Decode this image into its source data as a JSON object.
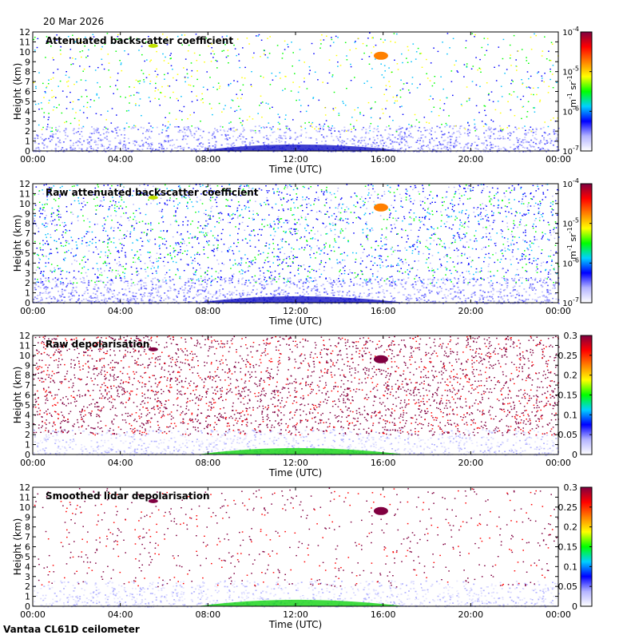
{
  "date_label": "20 Mar 2026",
  "footer_label": "Vantaa CL61D ceilometer",
  "time_ticks": [
    "00:00",
    "04:00",
    "08:00",
    "12:00",
    "16:00",
    "20:00",
    "00:00"
  ],
  "height_ticks": [
    "0",
    "1",
    "2",
    "3",
    "4",
    "5",
    "6",
    "7",
    "8",
    "9",
    "10",
    "11",
    "12"
  ],
  "chart_data": [
    {
      "type": "heatmap",
      "title": "Attenuated backscatter coefficient",
      "xlabel": "Time (UTC)",
      "ylabel": "Height (km)",
      "xlim": [
        0,
        24
      ],
      "ylim": [
        0,
        12
      ],
      "colorbar": {
        "scale": "log",
        "range": [
          1e-07,
          0.0001
        ],
        "unit_base": "m",
        "unit_exp": "-1",
        "unit_base2": " sr",
        "unit_exp2": "-1",
        "ticks": [
          {
            "value": 1e-07,
            "base": "10",
            "exp": "-7"
          },
          {
            "value": 1e-06,
            "base": "10",
            "exp": "-6"
          },
          {
            "value": 1e-05,
            "base": "10",
            "exp": "-5"
          },
          {
            "value": 0.0001,
            "base": "10",
            "exp": "-4"
          }
        ]
      },
      "colormap": [
        "#ffffff",
        "#b3b3ff",
        "#0000ff",
        "#00d0ff",
        "#00ff00",
        "#ffff00",
        "#ff8000",
        "#ff0000",
        "#800040"
      ]
    },
    {
      "type": "heatmap",
      "title": "Raw attenuated backscatter coefficient",
      "xlabel": "Time (UTC)",
      "ylabel": "Height (km)",
      "xlim": [
        0,
        24
      ],
      "ylim": [
        0,
        12
      ],
      "colorbar": {
        "scale": "log",
        "range": [
          1e-07,
          0.0001
        ],
        "unit_base": "m",
        "unit_exp": "-1",
        "unit_base2": " sr",
        "unit_exp2": "-1",
        "ticks": [
          {
            "value": 1e-07,
            "base": "10",
            "exp": "-7"
          },
          {
            "value": 1e-06,
            "base": "10",
            "exp": "-6"
          },
          {
            "value": 1e-05,
            "base": "10",
            "exp": "-5"
          },
          {
            "value": 0.0001,
            "base": "10",
            "exp": "-4"
          }
        ]
      },
      "colormap": [
        "#ffffff",
        "#b3b3ff",
        "#0000ff",
        "#00d0ff",
        "#00ff00",
        "#ffff00",
        "#ff8000",
        "#ff0000",
        "#800040"
      ]
    },
    {
      "type": "heatmap",
      "title": "Raw depolarisation",
      "xlabel": "Time (UTC)",
      "ylabel": "Height (km)",
      "xlim": [
        0,
        24
      ],
      "ylim": [
        0,
        12
      ],
      "colorbar": {
        "scale": "linear",
        "range": [
          0,
          0.3
        ],
        "ticks": [
          {
            "value": 0,
            "label": "0"
          },
          {
            "value": 0.05,
            "label": "0.05"
          },
          {
            "value": 0.1,
            "label": "0.1"
          },
          {
            "value": 0.15,
            "label": "0.15"
          },
          {
            "value": 0.2,
            "label": "0.2"
          },
          {
            "value": 0.25,
            "label": "0.25"
          },
          {
            "value": 0.3,
            "label": "0.3"
          }
        ]
      },
      "colormap": [
        "#ffffff",
        "#b3b3ff",
        "#0000ff",
        "#00d0ff",
        "#00ff00",
        "#ffff00",
        "#ff8000",
        "#ff0000",
        "#800040"
      ]
    },
    {
      "type": "heatmap",
      "title": "Smoothed lidar depolarisation",
      "xlabel": "Time (UTC)",
      "ylabel": "Height (km)",
      "xlim": [
        0,
        24
      ],
      "ylim": [
        0,
        12
      ],
      "colorbar": {
        "scale": "linear",
        "range": [
          0,
          0.3
        ],
        "ticks": [
          {
            "value": 0,
            "label": "0"
          },
          {
            "value": 0.05,
            "label": "0.05"
          },
          {
            "value": 0.1,
            "label": "0.1"
          },
          {
            "value": 0.15,
            "label": "0.15"
          },
          {
            "value": 0.2,
            "label": "0.2"
          },
          {
            "value": 0.25,
            "label": "0.25"
          },
          {
            "value": 0.3,
            "label": "0.3"
          }
        ]
      },
      "colormap": [
        "#ffffff",
        "#b3b3ff",
        "#0000ff",
        "#00d0ff",
        "#00ff00",
        "#ffff00",
        "#ff8000",
        "#ff0000",
        "#800040"
      ]
    }
  ]
}
